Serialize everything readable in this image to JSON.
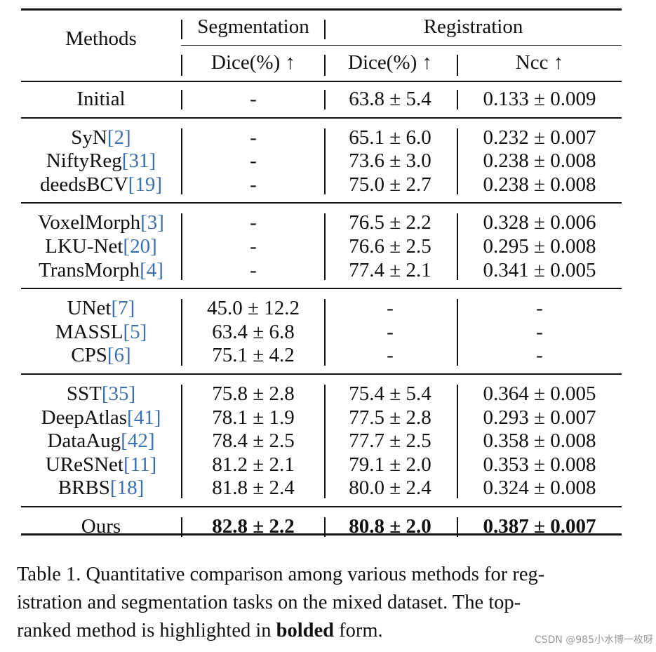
{
  "table": {
    "header": {
      "methods": "Methods",
      "segmentation": "Segmentation",
      "registration": "Registration",
      "seg_dice": "Dice(%) ↑",
      "reg_dice": "Dice(%) ↑",
      "reg_ncc": "Ncc ↑"
    },
    "groups": [
      {
        "rows": [
          {
            "method": "Initial",
            "cite": "",
            "seg": "-",
            "reg_dice": "63.8 ± 5.4",
            "ncc": "0.133 ± 0.009"
          }
        ]
      },
      {
        "rows": [
          {
            "method": "SyN",
            "cite": "[2]",
            "seg": "-",
            "reg_dice": "65.1 ± 6.0",
            "ncc": "0.232 ± 0.007"
          },
          {
            "method": "NiftyReg",
            "cite": "[31]",
            "seg": "-",
            "reg_dice": "73.6 ± 3.0",
            "ncc": "0.238 ± 0.008"
          },
          {
            "method": "deedsBCV",
            "cite": "[19]",
            "seg": "-",
            "reg_dice": "75.0 ± 2.7",
            "ncc": "0.238 ± 0.008"
          }
        ]
      },
      {
        "rows": [
          {
            "method": "VoxelMorph",
            "cite": "[3]",
            "seg": "-",
            "reg_dice": "76.5 ± 2.2",
            "ncc": "0.328 ± 0.006"
          },
          {
            "method": "LKU-Net",
            "cite": "[20]",
            "seg": "-",
            "reg_dice": "76.6 ± 2.5",
            "ncc": "0.295 ± 0.008"
          },
          {
            "method": "TransMorph",
            "cite": "[4]",
            "seg": "-",
            "reg_dice": "77.4 ± 2.1",
            "ncc": "0.341 ± 0.005"
          }
        ]
      },
      {
        "rows": [
          {
            "method": "UNet",
            "cite": "[7]",
            "seg": "45.0 ± 12.2",
            "reg_dice": "-",
            "ncc": "-"
          },
          {
            "method": "MASSL",
            "cite": "[5]",
            "seg": "63.4 ± 6.8",
            "reg_dice": "-",
            "ncc": "-"
          },
          {
            "method": "CPS",
            "cite": "[6]",
            "seg": "75.1 ± 4.2",
            "reg_dice": "-",
            "ncc": "-"
          }
        ]
      },
      {
        "rows": [
          {
            "method": "SST",
            "cite": "[35]",
            "seg": "75.8 ± 2.8",
            "reg_dice": "75.4 ± 5.4",
            "ncc": "0.364 ± 0.005"
          },
          {
            "method": "DeepAtlas",
            "cite": "[41]",
            "seg": "78.1 ± 1.9",
            "reg_dice": "77.5 ± 2.8",
            "ncc": "0.293 ± 0.007"
          },
          {
            "method": "DataAug",
            "cite": "[42]",
            "seg": "78.4 ± 2.5",
            "reg_dice": "77.7 ± 2.5",
            "ncc": "0.358 ± 0.008"
          },
          {
            "method": "UReSNet",
            "cite": "[11]",
            "seg": "81.2 ± 2.1",
            "reg_dice": "79.1 ± 2.0",
            "ncc": "0.353 ± 0.008"
          },
          {
            "method": "BRBS",
            "cite": "[18]",
            "seg": "81.8 ± 2.4",
            "reg_dice": "80.0 ± 2.4",
            "ncc": "0.324 ± 0.008"
          }
        ]
      },
      {
        "rows": [
          {
            "method": "Ours",
            "cite": "",
            "seg": "82.8 ± 2.2",
            "reg_dice": "80.8 ± 2.0",
            "ncc": "0.387 ± 0.007",
            "bold": true
          }
        ]
      }
    ]
  },
  "caption": {
    "line1": "Table 1. Quantitative comparison among various methods for reg-",
    "line2": "istration and segmentation tasks on the mixed dataset.  The top-",
    "line3_before": "ranked method is highlighted in ",
    "line3_bold": "bolded",
    "line3_after": " form."
  },
  "watermark": "CSDN @985小水博一枚呀"
}
